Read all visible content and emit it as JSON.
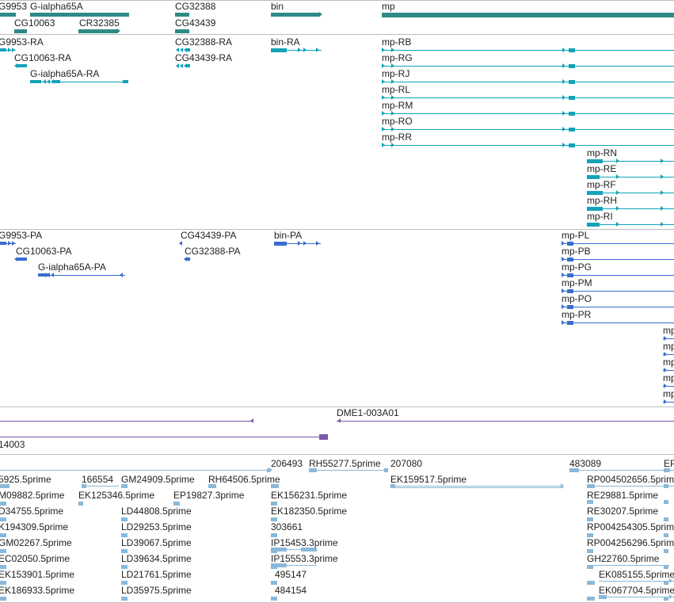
{
  "colors": {
    "gene": "#2e8b86",
    "transcript": "#13a3b8",
    "protein": "#3a6ccf",
    "clone": "#7a5aa8",
    "est": "#8ab8d8",
    "separator": "#bdbdbd"
  },
  "tracks": {
    "genes": {
      "labels": [
        "G9953",
        "G-ialpha65A",
        "CG10063",
        "CR32385",
        "CG32388",
        "CG43439",
        "bin",
        "mp"
      ]
    },
    "transcripts": {
      "labels": [
        "G9953-RA",
        "CG10063-RA",
        "G-ialpha65A-RA",
        "CG32388-RA",
        "CG43439-RA",
        "bin-RA",
        "mp-RB",
        "mp-RG",
        "mp-RJ",
        "mp-RL",
        "mp-RM",
        "mp-RO",
        "mp-RR",
        "mp-RN",
        "mp-RE",
        "mp-RF",
        "mp-RH",
        "mp-RI"
      ]
    },
    "proteins": {
      "labels": [
        "G9953-PA",
        "CG10063-PA",
        "G-ialpha65A-PA",
        "CG43439-PA",
        "CG32388-PA",
        "bin-PA",
        "mp-PL",
        "mp-PB",
        "mp-PG",
        "mp-PM",
        "mp-PO",
        "mp-PR",
        "mp",
        "mp",
        "mp",
        "mp",
        "mp"
      ]
    },
    "clones": {
      "labels": [
        "DME1-003A01",
        "14003"
      ]
    },
    "ests": {
      "labels": [
        "5925.5prime",
        "166554",
        "GM24909.5prime",
        "RH64506.5prime",
        "206493",
        "RH55277.5prime",
        "207080",
        "483089",
        "EP",
        "M09882.5prime",
        "EK125346.5prime",
        "EP19827.3prime",
        "EK156231.5prime",
        "EK159517.5prime",
        "RP004502656.5prime",
        "D34755.5prime",
        "LD44808.5prime",
        "EK182350.5prime",
        "RE29881.5prime",
        "K194309.5prime",
        "LD29253.5prime",
        "303661",
        "RE30207.5prime",
        "GM02267.5prime",
        "LD39067.5prime",
        "IP15453.3prime",
        "RP004254305.5prime",
        "EC02050.5prime",
        "LD39634.5prime",
        "IP15553.3prime",
        "RP004256296.5prime",
        "EK153901.5prime",
        "LD21761.5prime",
        "495147",
        "GH22760.5prime",
        "EK186933.5prime",
        "LD35975.5prime",
        "484154",
        "EK085155.5prime",
        "EK067704.5prime"
      ]
    }
  }
}
